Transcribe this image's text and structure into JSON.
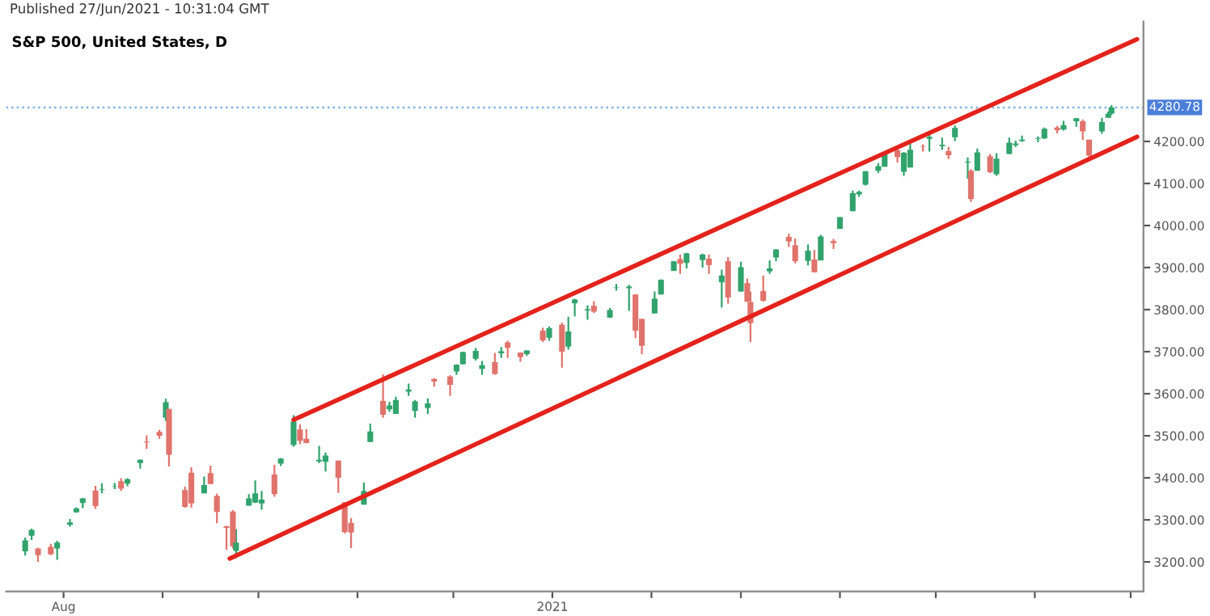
{
  "chart_data": {
    "type": "candlestick",
    "title": "S&P 500, United States, D",
    "annotations": [
      "Published 27/Jun/2021 - 10:31:04 GMT"
    ],
    "x": [
      "2020-07-20",
      "2020-07-22",
      "2020-07-24",
      "2020-07-28",
      "2020-07-30",
      "2020-08-03",
      "2020-08-05",
      "2020-08-07",
      "2020-08-11",
      "2020-08-13",
      "2020-08-17",
      "2020-08-19",
      "2020-08-21",
      "2020-08-25",
      "2020-08-27",
      "2020-08-31",
      "2020-09-02",
      "2020-09-03",
      "2020-09-08",
      "2020-09-10",
      "2020-09-14",
      "2020-09-16",
      "2020-09-18",
      "2020-09-21",
      "2020-09-23",
      "2020-09-24",
      "2020-09-28",
      "2020-09-30",
      "2020-10-02",
      "2020-10-06",
      "2020-10-08",
      "2020-10-12",
      "2020-10-14",
      "2020-10-16",
      "2020-10-20",
      "2020-10-22",
      "2020-10-26",
      "2020-10-28",
      "2020-10-30",
      "2020-11-03",
      "2020-11-05",
      "2020-11-09",
      "2020-11-11",
      "2020-11-13",
      "2020-11-17",
      "2020-11-19",
      "2020-11-23",
      "2020-11-25",
      "2020-11-30",
      "2020-12-02",
      "2020-12-04",
      "2020-12-08",
      "2020-12-10",
      "2020-12-14",
      "2020-12-16",
      "2020-12-18",
      "2020-12-22",
      "2020-12-24",
      "2020-12-29",
      "2020-12-31",
      "2021-01-04",
      "2021-01-06",
      "2021-01-08",
      "2021-01-12",
      "2021-01-14",
      "2021-01-19",
      "2021-01-21",
      "2021-01-25",
      "2021-01-27",
      "2021-01-29",
      "2021-02-02",
      "2021-02-04",
      "2021-02-08",
      "2021-02-10",
      "2021-02-12",
      "2021-02-17",
      "2021-02-19",
      "2021-02-23",
      "2021-02-25",
      "2021-03-01",
      "2021-03-03",
      "2021-03-04",
      "2021-03-08",
      "2021-03-10",
      "2021-03-12",
      "2021-03-16",
      "2021-03-18",
      "2021-03-22",
      "2021-03-24",
      "2021-03-26",
      "2021-03-30",
      "2021-04-01",
      "2021-04-05",
      "2021-04-07",
      "2021-04-09",
      "2021-04-13",
      "2021-04-15",
      "2021-04-19",
      "2021-04-21",
      "2021-04-23",
      "2021-04-27",
      "2021-04-29",
      "2021-05-03",
      "2021-05-05",
      "2021-05-07",
      "2021-05-11",
      "2021-05-12",
      "2021-05-14",
      "2021-05-18",
      "2021-05-20",
      "2021-05-24",
      "2021-05-26",
      "2021-05-28",
      "2021-06-02",
      "2021-06-04",
      "2021-06-08",
      "2021-06-10",
      "2021-06-14",
      "2021-06-16",
      "2021-06-18",
      "2021-06-22",
      "2021-06-24",
      "2021-06-25"
    ],
    "ohlc": [
      [
        3225,
        3258,
        3215,
        3251
      ],
      [
        3262,
        3279,
        3252,
        3276
      ],
      [
        3232,
        3234,
        3200,
        3216
      ],
      [
        3236,
        3243,
        3216,
        3218
      ],
      [
        3232,
        3250,
        3205,
        3246
      ],
      [
        3288,
        3302,
        3284,
        3294
      ],
      [
        3318,
        3330,
        3317,
        3327
      ],
      [
        3340,
        3352,
        3328,
        3351
      ],
      [
        3370,
        3381,
        3326,
        3333
      ],
      [
        3372,
        3387,
        3363,
        3373
      ],
      [
        3380,
        3388,
        3373,
        3381
      ],
      [
        3392,
        3399,
        3369,
        3374
      ],
      [
        3386,
        3399,
        3380,
        3397
      ],
      [
        3435,
        3444,
        3422,
        3443
      ],
      [
        3486,
        3501,
        3469,
        3484
      ],
      [
        3509,
        3514,
        3493,
        3500
      ],
      [
        3543,
        3588,
        3535,
        3580
      ],
      [
        3564,
        3564,
        3427,
        3455
      ],
      [
        3371,
        3379,
        3329,
        3331
      ],
      [
        3412,
        3425,
        3329,
        3339
      ],
      [
        3363,
        3403,
        3363,
        3383
      ],
      [
        3411,
        3429,
        3385,
        3385
      ],
      [
        3357,
        3362,
        3292,
        3319
      ],
      [
        3285,
        3286,
        3229,
        3281
      ],
      [
        3320,
        3323,
        3232,
        3237
      ],
      [
        3226,
        3278,
        3209,
        3246
      ],
      [
        3334,
        3361,
        3334,
        3351
      ],
      [
        3341,
        3394,
        3340,
        3363
      ],
      [
        3339,
        3369,
        3324,
        3348
      ],
      [
        3408,
        3431,
        3355,
        3361
      ],
      [
        3434,
        3447,
        3428,
        3446
      ],
      [
        3478,
        3549,
        3474,
        3534
      ],
      [
        3515,
        3527,
        3480,
        3488
      ],
      [
        3493,
        3516,
        3482,
        3483
      ],
      [
        3439,
        3476,
        3435,
        3443
      ],
      [
        3438,
        3460,
        3415,
        3453
      ],
      [
        3441,
        3441,
        3364,
        3400
      ],
      [
        3342,
        3342,
        3268,
        3271
      ],
      [
        3293,
        3304,
        3233,
        3270
      ],
      [
        3336,
        3389,
        3336,
        3369
      ],
      [
        3485,
        3529,
        3485,
        3510
      ],
      [
        3583,
        3646,
        3543,
        3550
      ],
      [
        3563,
        3581,
        3557,
        3572
      ],
      [
        3552,
        3593,
        3552,
        3585
      ],
      [
        3605,
        3624,
        3595,
        3610
      ],
      [
        3559,
        3585,
        3543,
        3582
      ],
      [
        3566,
        3589,
        3552,
        3577
      ],
      [
        3635,
        3637,
        3617,
        3629
      ],
      [
        3641,
        3644,
        3595,
        3621
      ],
      [
        3653,
        3670,
        3645,
        3669
      ],
      [
        3670,
        3700,
        3670,
        3699
      ],
      [
        3683,
        3709,
        3679,
        3702
      ],
      [
        3659,
        3678,
        3645,
        3668
      ],
      [
        3675,
        3697,
        3645,
        3647
      ],
      [
        3696,
        3711,
        3685,
        3701
      ],
      [
        3722,
        3726,
        3685,
        3709
      ],
      [
        3698,
        3698,
        3676,
        3687
      ],
      [
        3694,
        3703,
        3690,
        3703
      ],
      [
        3750,
        3757,
        3723,
        3727
      ],
      [
        3733,
        3760,
        3726,
        3756
      ],
      [
        3764,
        3769,
        3662,
        3700
      ],
      [
        3712,
        3783,
        3705,
        3748
      ],
      [
        3815,
        3826,
        3784,
        3824
      ],
      [
        3798,
        3810,
        3776,
        3801
      ],
      [
        3809,
        3820,
        3792,
        3795
      ],
      [
        3781,
        3804,
        3780,
        3799
      ],
      [
        3852,
        3861,
        3845,
        3853
      ],
      [
        3851,
        3859,
        3797,
        3855
      ],
      [
        3836,
        3836,
        3732,
        3750
      ],
      [
        3778,
        3778,
        3694,
        3714
      ],
      [
        3791,
        3843,
        3791,
        3826
      ],
      [
        3836,
        3872,
        3836,
        3871
      ],
      [
        3892,
        3915,
        3892,
        3915
      ],
      [
        3920,
        3931,
        3885,
        3909
      ],
      [
        3911,
        3935,
        3898,
        3934
      ],
      [
        3918,
        3933,
        3900,
        3931
      ],
      [
        3921,
        3931,
        3885,
        3906
      ],
      [
        3865,
        3895,
        3805,
        3881
      ],
      [
        3915,
        3925,
        3814,
        3829
      ],
      [
        3843,
        3914,
        3843,
        3901
      ],
      [
        3863,
        3874,
        3818,
        3819
      ],
      [
        3818,
        3843,
        3723,
        3768
      ],
      [
        3844,
        3881,
        3819,
        3821
      ],
      [
        3891,
        3917,
        3885,
        3898
      ],
      [
        3924,
        3944,
        3915,
        3943
      ],
      [
        3973,
        3981,
        3949,
        3962
      ],
      [
        3953,
        3969,
        3910,
        3915
      ],
      [
        3916,
        3955,
        3905,
        3940
      ],
      [
        3919,
        3942,
        3888,
        3889
      ],
      [
        3917,
        3978,
        3917,
        3974
      ],
      [
        3963,
        3968,
        3944,
        3958
      ],
      [
        3992,
        4020,
        3992,
        4020
      ],
      [
        4034,
        4083,
        4034,
        4077
      ],
      [
        4074,
        4083,
        4068,
        4080
      ],
      [
        4097,
        4129,
        4095,
        4129
      ],
      [
        4130,
        4148,
        4125,
        4141
      ],
      [
        4140,
        4173,
        4140,
        4170
      ],
      [
        4179,
        4181,
        4150,
        4163
      ],
      [
        4128,
        4175,
        4118,
        4173
      ],
      [
        4138,
        4194,
        4138,
        4180
      ],
      [
        4188,
        4193,
        4176,
        4187
      ],
      [
        4206,
        4218,
        4176,
        4211
      ],
      [
        4189,
        4209,
        4180,
        4192
      ],
      [
        4177,
        4187,
        4158,
        4167
      ],
      [
        4210,
        4238,
        4201,
        4232
      ],
      [
        4150,
        4162,
        4111,
        4152
      ],
      [
        4130,
        4134,
        4056,
        4063
      ],
      [
        4130,
        4183,
        4130,
        4174
      ],
      [
        4165,
        4170,
        4125,
        4127
      ],
      [
        4122,
        4172,
        4118,
        4159
      ],
      [
        4170,
        4209,
        4170,
        4197
      ],
      [
        4191,
        4202,
        4187,
        4195
      ],
      [
        4201,
        4214,
        4199,
        4204
      ],
      [
        4206,
        4212,
        4198,
        4208
      ],
      [
        4207,
        4233,
        4206,
        4230
      ],
      [
        4233,
        4237,
        4219,
        4227
      ],
      [
        4228,
        4249,
        4226,
        4239
      ],
      [
        4248,
        4255,
        4235,
        4255
      ],
      [
        4248,
        4252,
        4203,
        4224
      ],
      [
        4204,
        4204,
        4164,
        4166
      ],
      [
        4224,
        4256,
        4218,
        4246
      ],
      [
        4256,
        4271,
        4256,
        4266
      ],
      [
        4266,
        4286,
        4263,
        4281
      ]
    ],
    "colors": [
      "#31a36c",
      "#31a36c",
      "#e0736b",
      "#e0736b",
      "#31a36c",
      "#31a36c",
      "#31a36c",
      "#31a36c",
      "#e0736b",
      "#31a36c",
      "#31a36c",
      "#e0736b",
      "#31a36c",
      "#31a36c",
      "#e0736b",
      "#e0736b",
      "#31a36c",
      "#e0736b",
      "#e0736b",
      "#e0736b",
      "#31a36c",
      "#e0736b",
      "#e0736b",
      "#e0736b",
      "#e0736b",
      "#31a36c",
      "#31a36c",
      "#31a36c",
      "#31a36c",
      "#e0736b",
      "#31a36c",
      "#31a36c",
      "#e0736b",
      "#e0736b",
      "#31a36c",
      "#31a36c",
      "#e0736b",
      "#e0736b",
      "#e0736b",
      "#31a36c",
      "#31a36c",
      "#e0736b",
      "#31a36c",
      "#31a36c",
      "#31a36c",
      "#31a36c",
      "#31a36c",
      "#e0736b",
      "#e0736b",
      "#31a36c",
      "#31a36c",
      "#31a36c",
      "#31a36c",
      "#e0736b",
      "#31a36c",
      "#e0736b",
      "#e0736b",
      "#31a36c",
      "#e0736b",
      "#31a36c",
      "#e0736b",
      "#31a36c",
      "#31a36c",
      "#31a36c",
      "#e0736b",
      "#31a36c",
      "#31a36c",
      "#31a36c",
      "#e0736b",
      "#e0736b",
      "#31a36c",
      "#31a36c",
      "#31a36c",
      "#e0736b",
      "#31a36c",
      "#31a36c",
      "#e0736b",
      "#31a36c",
      "#e0736b",
      "#31a36c",
      "#e0736b",
      "#e0736b",
      "#e0736b",
      "#31a36c",
      "#31a36c",
      "#e0736b",
      "#e0736b",
      "#31a36c",
      "#e0736b",
      "#31a36c",
      "#e0736b",
      "#31a36c",
      "#31a36c",
      "#31a36c",
      "#31a36c",
      "#31a36c",
      "#31a36c",
      "#e0736b",
      "#31a36c",
      "#31a36c",
      "#e0736b",
      "#31a36c",
      "#31a36c",
      "#e0736b",
      "#31a36c",
      "#31a36c",
      "#e0736b",
      "#31a36c",
      "#e0736b",
      "#31a36c",
      "#31a36c",
      "#31a36c",
      "#31a36c",
      "#31a36c",
      "#31a36c",
      "#e0736b",
      "#31a36c",
      "#31a36c",
      "#e0736b",
      "#e0736b",
      "#31a36c",
      "#31a36c",
      "#31a36c"
    ],
    "series": [
      {
        "type": "line",
        "color": "#e3231c",
        "x": [
          "2020-10-12",
          "2021-07-03"
        ],
        "values": [
          3538,
          4443
        ]
      },
      {
        "type": "line",
        "color": "#e3231c",
        "x": [
          "2020-09-22",
          "2021-07-03"
        ],
        "values": [
          3208,
          4211
        ]
      }
    ],
    "ref_lines": [
      {
        "axis": "y",
        "value": 4280.78,
        "label": "4280.78",
        "color": "#7fb0e0",
        "line_style": "dotted"
      }
    ],
    "xlim": [
      "2020-07-14",
      "2021-07-05"
    ],
    "xticks": [
      {
        "value": "2020-08-01",
        "label": "Aug"
      },
      {
        "value": "2020-09-01",
        "label": null
      },
      {
        "value": "2020-10-01",
        "label": null
      },
      {
        "value": "2020-11-01",
        "label": null
      },
      {
        "value": "2020-12-01",
        "label": null
      },
      {
        "value": "2021-01-01",
        "label": "2021"
      },
      {
        "value": "2021-02-01",
        "label": null
      },
      {
        "value": "2021-03-01",
        "label": null
      },
      {
        "value": "2021-04-01",
        "label": null
      },
      {
        "value": "2021-05-01",
        "label": null
      },
      {
        "value": "2021-06-01",
        "label": null
      },
      {
        "value": "2021-07-01",
        "label": null
      }
    ],
    "ylim": [
      3130,
      4485
    ],
    "yticks": [
      {
        "value": 3200,
        "label": "3200.00"
      },
      {
        "value": 3300,
        "label": "3300.00"
      },
      {
        "value": 3400,
        "label": "3400.00"
      },
      {
        "value": 3500,
        "label": "3500.00"
      },
      {
        "value": 3600,
        "label": "3600.00"
      },
      {
        "value": 3700,
        "label": "3700.00"
      },
      {
        "value": 3800,
        "label": "3800.00"
      },
      {
        "value": 3900,
        "label": "3900.00"
      },
      {
        "value": 4000,
        "label": "4000.00"
      },
      {
        "value": 4100,
        "label": "4100.00"
      },
      {
        "value": 4200,
        "label": "4200.00"
      }
    ],
    "grid": false,
    "legend": false
  }
}
